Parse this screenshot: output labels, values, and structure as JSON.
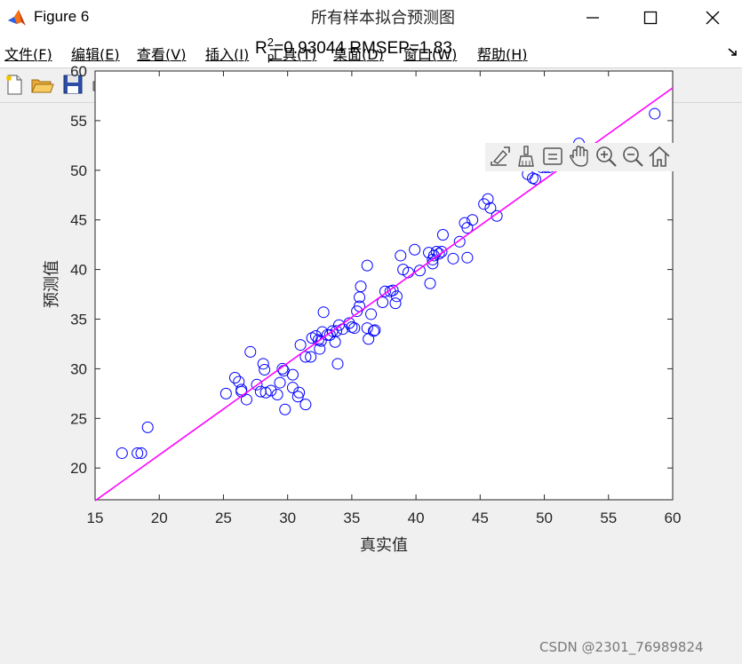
{
  "window": {
    "title": "Figure 6",
    "icon": "matlab-icon"
  },
  "menu": [
    {
      "label": "文件(F)"
    },
    {
      "label": "编辑(E)"
    },
    {
      "label": "查看(V)"
    },
    {
      "label": "插入(I)"
    },
    {
      "label": "工具(T)"
    },
    {
      "label": "桌面(D)"
    },
    {
      "label": "窗口(W)"
    },
    {
      "label": "帮助(H)"
    }
  ],
  "toolbar": [
    "new-figure-icon",
    "open-file-icon",
    "save-icon",
    "print-icon",
    "link-plot-icon",
    "colorbar-icon",
    "legend-icon",
    "pointer-icon",
    "property-editor-icon"
  ],
  "axes_toolbar": [
    "export-icon",
    "brush-icon",
    "datatip-icon",
    "pan-icon",
    "zoom-in-icon",
    "zoom-out-icon",
    "home-icon"
  ],
  "watermark": "CSDN @2301_76989824",
  "chart_data": {
    "type": "scatter",
    "title": "所有样本拟合预测图",
    "subtitle": {
      "r_base": "R",
      "r_sup": "2",
      "r_sub": "p",
      "rest": "=0.93044  RMSEP=1.83"
    },
    "xlabel": "真实值",
    "ylabel": "预测值",
    "xlim": [
      15,
      60
    ],
    "ylim": [
      16.8,
      60
    ],
    "xticks": [
      "15",
      "20",
      "25",
      "30",
      "35",
      "40",
      "45",
      "50",
      "55",
      "60"
    ],
    "yticks": [
      "20",
      "25",
      "30",
      "35",
      "40",
      "45",
      "50",
      "55",
      "60"
    ],
    "marker_color": "#0000ff",
    "line_color": "#ff00ff",
    "fit_line": {
      "x": [
        15,
        60
      ],
      "y": [
        16.7,
        58.3
      ]
    },
    "points": [
      [
        17.1,
        21.5
      ],
      [
        18.3,
        21.5
      ],
      [
        18.6,
        21.5
      ],
      [
        19.1,
        24.1
      ],
      [
        25.2,
        27.5
      ],
      [
        25.9,
        29.1
      ],
      [
        26.2,
        28.7
      ],
      [
        26.4,
        27.9
      ],
      [
        26.4,
        27.7
      ],
      [
        26.8,
        26.9
      ],
      [
        27.1,
        31.7
      ],
      [
        27.6,
        28.4
      ],
      [
        27.9,
        27.7
      ],
      [
        28.1,
        30.5
      ],
      [
        28.2,
        29.9
      ],
      [
        28.3,
        27.6
      ],
      [
        28.7,
        27.8
      ],
      [
        29.2,
        27.4
      ],
      [
        29.4,
        28.6
      ],
      [
        29.6,
        30.0
      ],
      [
        29.7,
        29.8
      ],
      [
        29.8,
        25.9
      ],
      [
        30.4,
        29.4
      ],
      [
        30.4,
        28.1
      ],
      [
        30.8,
        27.2
      ],
      [
        30.9,
        27.6
      ],
      [
        31.0,
        32.4
      ],
      [
        31.4,
        26.4
      ],
      [
        31.4,
        31.2
      ],
      [
        31.8,
        31.2
      ],
      [
        31.9,
        33.1
      ],
      [
        32.2,
        33.3
      ],
      [
        32.4,
        32.9
      ],
      [
        32.5,
        32.0
      ],
      [
        32.6,
        32.8
      ],
      [
        32.7,
        33.7
      ],
      [
        32.8,
        35.7
      ],
      [
        33.1,
        33.4
      ],
      [
        33.3,
        33.4
      ],
      [
        33.5,
        33.8
      ],
      [
        33.7,
        32.7
      ],
      [
        33.8,
        33.8
      ],
      [
        33.9,
        30.5
      ],
      [
        34.0,
        34.4
      ],
      [
        34.3,
        34.0
      ],
      [
        34.8,
        34.6
      ],
      [
        35.0,
        34.2
      ],
      [
        35.2,
        34.1
      ],
      [
        35.4,
        35.8
      ],
      [
        35.6,
        36.3
      ],
      [
        35.6,
        37.2
      ],
      [
        35.7,
        38.3
      ],
      [
        36.2,
        40.4
      ],
      [
        36.2,
        34.1
      ],
      [
        36.3,
        33.0
      ],
      [
        36.5,
        35.5
      ],
      [
        36.7,
        33.8
      ],
      [
        36.8,
        33.9
      ],
      [
        37.4,
        36.7
      ],
      [
        37.6,
        37.8
      ],
      [
        38.0,
        37.8
      ],
      [
        38.2,
        37.9
      ],
      [
        38.4,
        36.6
      ],
      [
        38.5,
        37.3
      ],
      [
        38.8,
        41.4
      ],
      [
        39.0,
        40.0
      ],
      [
        39.4,
        39.7
      ],
      [
        39.9,
        42.0
      ],
      [
        40.3,
        39.9
      ],
      [
        41.0,
        41.7
      ],
      [
        41.1,
        38.6
      ],
      [
        41.3,
        41.0
      ],
      [
        41.3,
        40.6
      ],
      [
        41.4,
        41.4
      ],
      [
        41.6,
        41.8
      ],
      [
        41.8,
        41.6
      ],
      [
        42.0,
        41.8
      ],
      [
        42.1,
        43.5
      ],
      [
        42.9,
        41.1
      ],
      [
        43.4,
        42.8
      ],
      [
        43.8,
        44.7
      ],
      [
        44.0,
        41.2
      ],
      [
        44.0,
        44.2
      ],
      [
        44.4,
        45.0
      ],
      [
        45.3,
        46.6
      ],
      [
        45.6,
        47.1
      ],
      [
        45.8,
        46.2
      ],
      [
        46.3,
        45.4
      ],
      [
        48.7,
        49.6
      ],
      [
        49.1,
        49.2
      ],
      [
        49.3,
        49.1
      ],
      [
        49.8,
        50.3
      ],
      [
        50.1,
        50.3
      ],
      [
        50.4,
        50.3
      ],
      [
        52.7,
        52.7
      ],
      [
        52.7,
        52.0
      ],
      [
        58.6,
        55.7
      ]
    ]
  }
}
